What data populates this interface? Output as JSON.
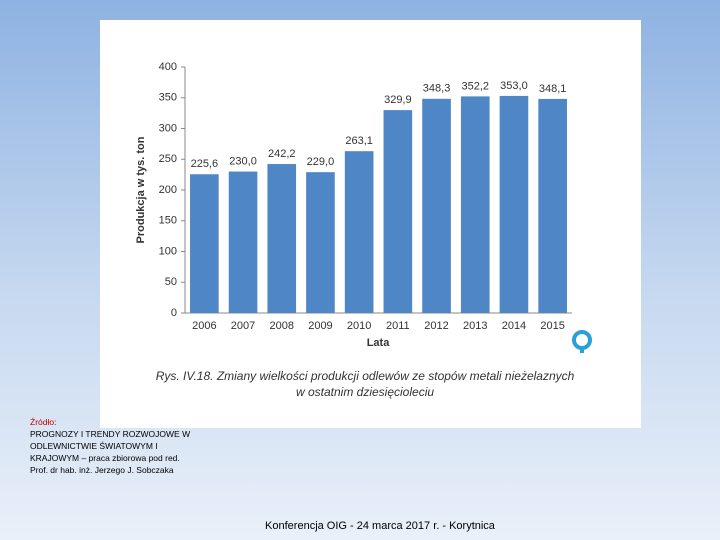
{
  "chart_data": {
    "type": "bar",
    "title": [
      "Rys. IV.18. Zmiany wielkości produkcji odlewów ze stopów metali nieżelaznych",
      "w ostatnim dziesięcioleciu"
    ],
    "x_label": "Lata",
    "y_label": "Produkcja w tys. ton",
    "categories": [
      "2006",
      "2007",
      "2008",
      "2009",
      "2010",
      "2011",
      "2012",
      "2013",
      "2014",
      "2015"
    ],
    "values": [
      225.6,
      230.0,
      242.2,
      229.0,
      263.1,
      329.9,
      348.3,
      352.2,
      353.0,
      348.1
    ],
    "value_labels": [
      "225,6",
      "230,0",
      "242,2",
      "229,0",
      "263,1",
      "329,9",
      "348,3",
      "352,2",
      "353,0",
      "348,1"
    ],
    "color": "#4f86c6",
    "ylim": [
      0,
      400
    ],
    "yticks": [
      0,
      50,
      100,
      150,
      200,
      250,
      300,
      350,
      400
    ],
    "grid": false
  },
  "source": {
    "label": "Źródło:",
    "lines": [
      " PROGNOZY I TRENDY ROZWOJOWE W",
      "ODLEWNICTWIE ŚWIATOWYM I",
      "KRAJOWYM – praca zbiorowa pod red.",
      "Prof. dr hab. inż. Jerzego J. Sobczaka"
    ]
  },
  "footer": "Konferencja OIG - 24 marca 2017 r. - Korytnica"
}
